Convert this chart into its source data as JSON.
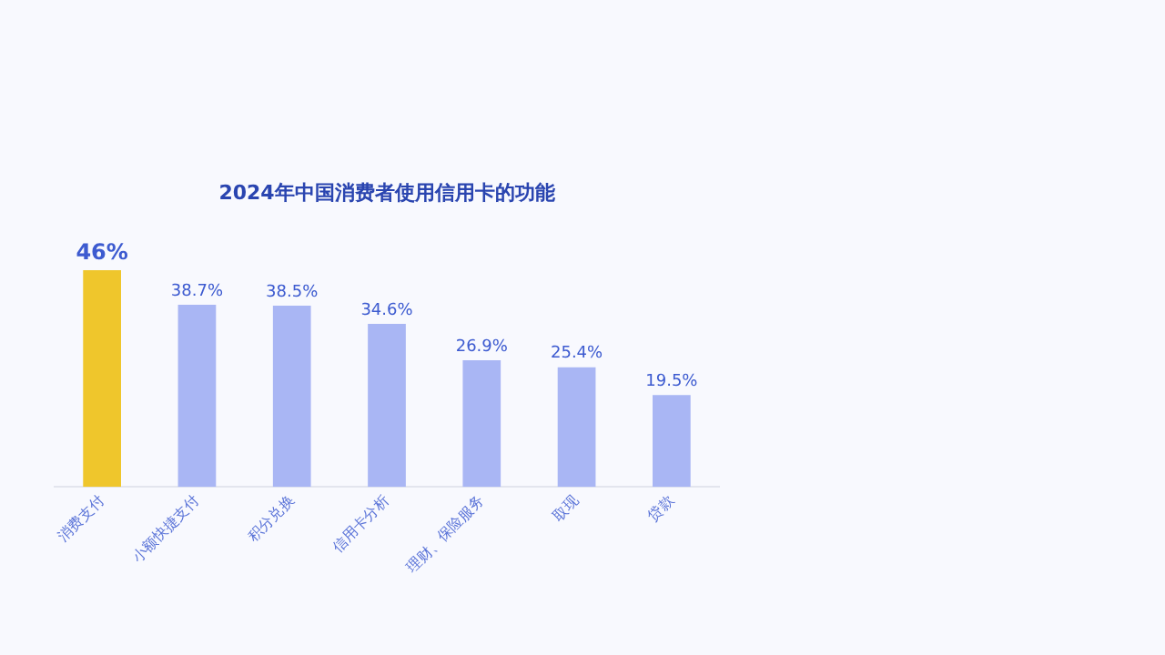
{
  "chart_data": {
    "type": "bar",
    "title": "2024年中国消费者使用信用卡的功能",
    "categories": [
      "消费支付",
      "小额快捷支付",
      "积分兑换",
      "信用卡分析",
      "理财、保险服务",
      "取现",
      "贷款"
    ],
    "values": [
      46,
      38.7,
      38.5,
      34.6,
      26.9,
      25.4,
      19.5
    ],
    "colors": [
      "#efc62c",
      "#a9b6f4",
      "#a9b6f4",
      "#a9b6f4",
      "#a9b6f4",
      "#a9b6f4",
      "#a9b6f4"
    ],
    "value_labels": [
      "46%",
      "38.7%",
      "38.5%",
      "34.6%",
      "26.9%",
      "25.4%",
      "19.5%"
    ],
    "legend": false,
    "grid": false
  }
}
